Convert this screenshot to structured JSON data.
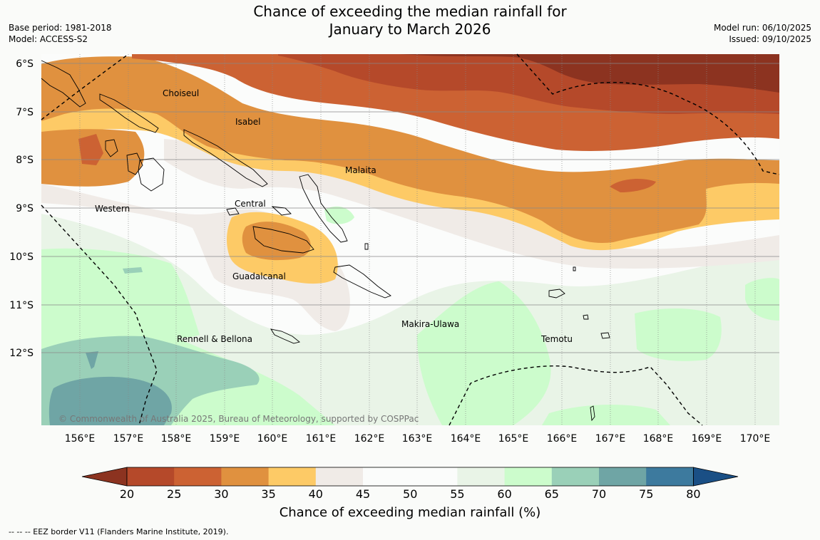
{
  "title_line1": "Chance of exceeding the median rainfall for",
  "title_line2": "January to March 2026",
  "base_period": "Base period: 1981-2018",
  "model": "Model: ACCESS-S2",
  "model_run": "Model run: 06/10/2025",
  "issued": "Issued: 09/10/2025",
  "copyright": "© Commonwealth of Australia 2025, Bureau of Meteorology, supported by COSPPac",
  "eez_note": "--  --  -- EEZ border V11 (Flanders Marine Institute, 2019).",
  "colorbar_title": "Chance of exceeding median rainfall (%)",
  "colorbar_ticks": [
    "20",
    "25",
    "30",
    "35",
    "40",
    "45",
    "50",
    "55",
    "60",
    "65",
    "70",
    "75",
    "80"
  ],
  "colorbar_colors": [
    "#8c3320",
    "#b5492a",
    "#cc6233",
    "#e0913f",
    "#fdca66",
    "#f0ebe7",
    "#fbfcfb",
    "#fbfcfb",
    "#e9f4e7",
    "#ccfccc",
    "#9ad0b8",
    "#6fa5a5",
    "#3d7a9e",
    "#1a4f85"
  ],
  "lon_labels": [
    "156°E",
    "157°E",
    "158°E",
    "159°E",
    "160°E",
    "161°E",
    "162°E",
    "163°E",
    "164°E",
    "165°E",
    "166°E",
    "167°E",
    "168°E",
    "169°E",
    "170°E"
  ],
  "lat_labels": [
    "6°S",
    "7°S",
    "8°S",
    "9°S",
    "10°S",
    "11°S",
    "12°S"
  ],
  "provinces": [
    {
      "name": "Choiseul"
    },
    {
      "name": "Isabel"
    },
    {
      "name": "Malaita"
    },
    {
      "name": "Western"
    },
    {
      "name": "Central"
    },
    {
      "name": "Guadalcanal"
    },
    {
      "name": "Makira-Ulawa"
    },
    {
      "name": "Rennell & Bellona"
    },
    {
      "name": "Temotu"
    }
  ]
}
